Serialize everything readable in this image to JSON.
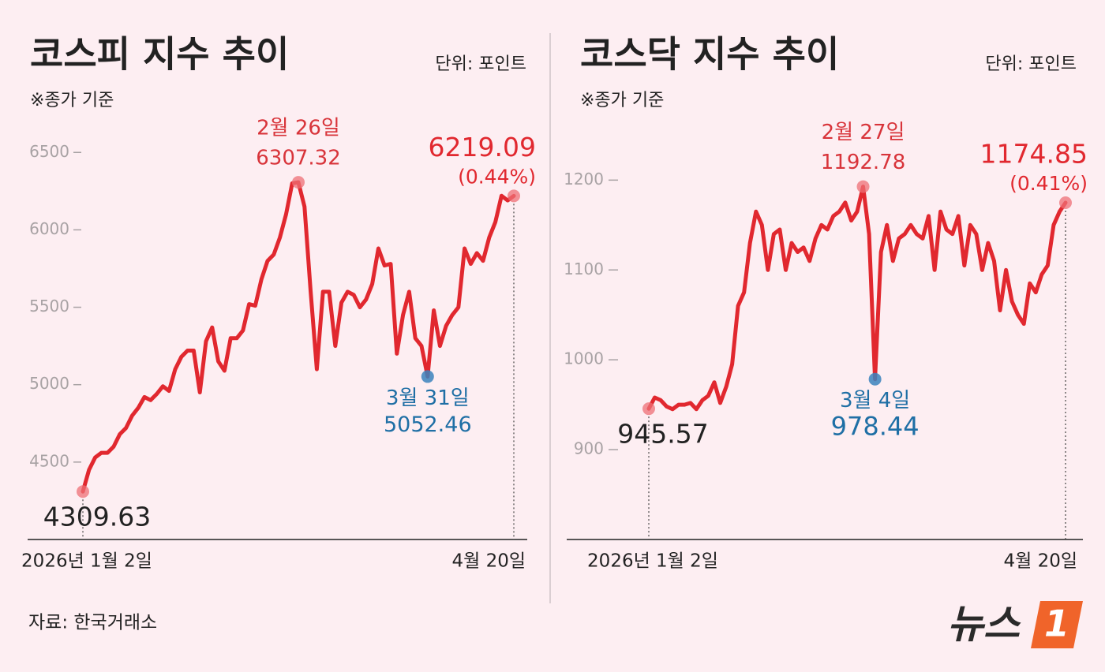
{
  "chart_data": [
    {
      "type": "line",
      "title": "코스피 지수 추이",
      "unit": "단위: 포인트",
      "subtitle": "※종가 기준",
      "categories": [
        "2026년 1월 2일",
        null,
        null,
        null,
        null,
        null,
        null,
        null,
        null,
        null,
        null,
        null,
        null,
        null,
        null,
        null,
        null,
        null,
        null,
        null,
        null,
        null,
        null,
        null,
        null,
        null,
        null,
        null,
        null,
        null,
        null,
        null,
        null,
        null,
        null,
        "2월 26일",
        null,
        null,
        null,
        null,
        null,
        null,
        null,
        null,
        null,
        null,
        null,
        null,
        null,
        null,
        null,
        null,
        null,
        null,
        null,
        null,
        "3월 31일",
        null,
        null,
        null,
        null,
        null,
        null,
        null,
        null,
        null,
        null,
        null,
        null,
        null,
        "4월 20일"
      ],
      "values": [
        4309.63,
        4450,
        4530,
        4560,
        4560,
        4600,
        4680,
        4720,
        4800,
        4850,
        4920,
        4900,
        4940,
        4990,
        4960,
        5100,
        5180,
        5220,
        5220,
        4950,
        5280,
        5370,
        5150,
        5090,
        5300,
        5300,
        5350,
        5520,
        5510,
        5680,
        5800,
        5840,
        5950,
        6100,
        6300,
        6307.32,
        6150,
        5600,
        5100,
        5600,
        5600,
        5250,
        5530,
        5600,
        5580,
        5500,
        5550,
        5650,
        5880,
        5770,
        5780,
        5200,
        5450,
        5600,
        5300,
        5250,
        5052.46,
        5480,
        5250,
        5380,
        5450,
        5500,
        5880,
        5780,
        5850,
        5800,
        5950,
        6050,
        6220,
        6190,
        6219.09
      ],
      "change_label": "(0.44%)",
      "color": "#e1282f",
      "marker_color": "#ee6f76",
      "low_color": "#3b83bd",
      "ylim": [
        4000,
        6700
      ],
      "yticks": [
        4500,
        5000,
        5500,
        6000,
        6500
      ]
    },
    {
      "type": "line",
      "title": "코스닥 지수 추이",
      "unit": "단위: 포인트",
      "subtitle": "※종가 기준",
      "categories": [
        "2026년 1월 2일",
        null,
        null,
        null,
        null,
        null,
        null,
        null,
        null,
        null,
        null,
        null,
        null,
        null,
        null,
        null,
        null,
        null,
        null,
        null,
        null,
        null,
        null,
        null,
        null,
        null,
        null,
        null,
        null,
        null,
        null,
        null,
        null,
        null,
        null,
        null,
        "2월 27일",
        null,
        "3월 4일",
        null,
        null,
        null,
        null,
        null,
        null,
        null,
        null,
        null,
        null,
        null,
        null,
        null,
        null,
        null,
        null,
        null,
        null,
        null,
        null,
        null,
        null,
        null,
        null,
        null,
        null,
        null,
        null,
        null,
        null,
        null,
        "4월 20일"
      ],
      "values": [
        945.57,
        958,
        955,
        948,
        945,
        950,
        950,
        952,
        945,
        955,
        960,
        975,
        952,
        970,
        995,
        1060,
        1075,
        1130,
        1165,
        1150,
        1100,
        1140,
        1145,
        1100,
        1130,
        1120,
        1125,
        1110,
        1135,
        1150,
        1145,
        1160,
        1165,
        1175,
        1155,
        1165,
        1192.78,
        1140,
        978.44,
        1120,
        1150,
        1110,
        1135,
        1140,
        1150,
        1140,
        1135,
        1160,
        1100,
        1165,
        1145,
        1140,
        1160,
        1105,
        1150,
        1140,
        1100,
        1130,
        1110,
        1055,
        1100,
        1065,
        1050,
        1040,
        1085,
        1075,
        1095,
        1105,
        1150,
        1165,
        1174.85
      ],
      "change_label": "(0.41%)",
      "color": "#e1282f",
      "marker_color": "#ee6f76",
      "low_color": "#3b83bd",
      "ylim": [
        800,
        1260
      ],
      "yticks": [
        900,
        1000,
        1100,
        1200
      ]
    }
  ],
  "source": "자료: 한국거래소",
  "logo": {
    "text": "뉴스",
    "badge": "1"
  }
}
